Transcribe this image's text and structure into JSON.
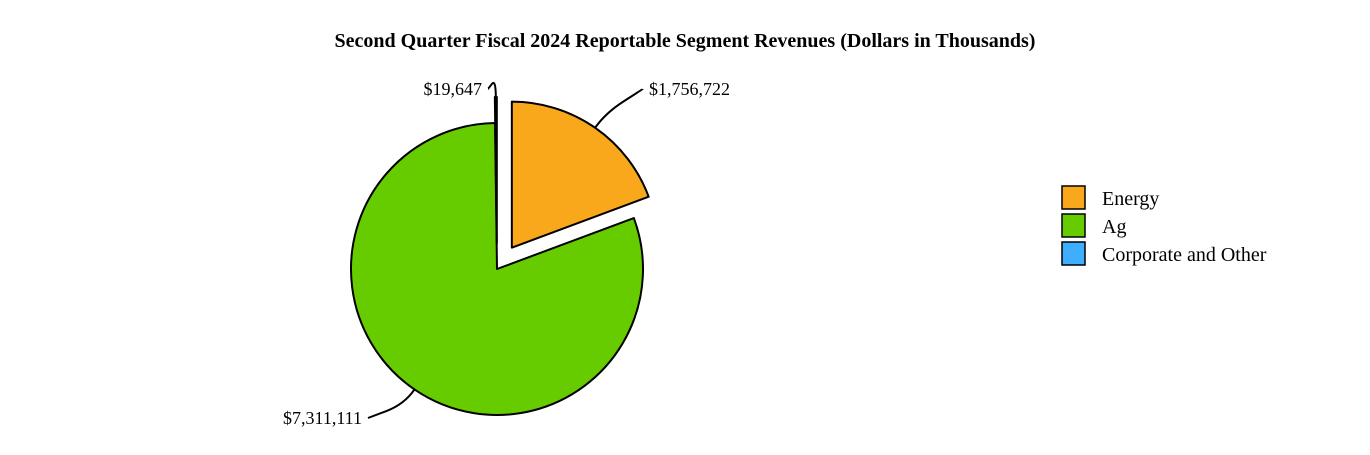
{
  "chart_data": {
    "type": "pie",
    "title": "Second Quarter Fiscal 2024 Reportable Segment Revenues (Dollars in Thousands)",
    "slices": [
      {
        "name": "Energy",
        "value": 1756722,
        "label": "$1,756,722",
        "color": "#F9A81C",
        "exploded": true
      },
      {
        "name": "Ag",
        "value": 7311111,
        "label": "$7,311,111",
        "color": "#66CC00",
        "exploded": false
      },
      {
        "name": "Corporate and Other",
        "value": 19647,
        "label": "$19,647",
        "color": "#3FAEFF",
        "exploded": true
      }
    ],
    "legend_position": "right"
  }
}
